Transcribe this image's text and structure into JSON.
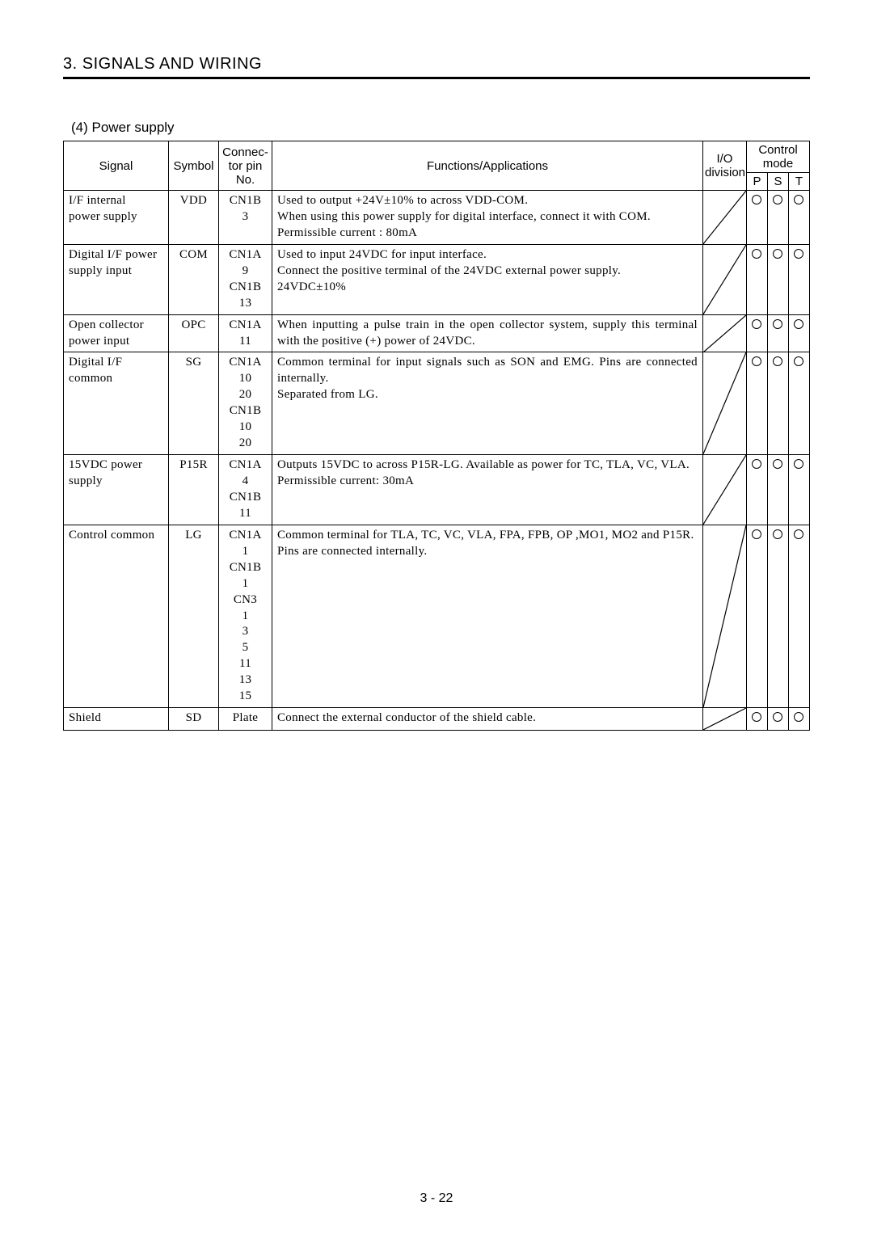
{
  "section_title": "3. SIGNALS AND WIRING",
  "sub_title": "(4) Power supply",
  "page_number": "3 -  22",
  "headers": {
    "signal": "Signal",
    "symbol": "Symbol",
    "connector": "Connec-\ntor pin\nNo.",
    "functions": "Functions/Applications",
    "io": "I/O\ndivision",
    "control_mode": "Control\nmode",
    "p": "P",
    "s": "S",
    "t": "T"
  },
  "rows": [
    {
      "signal": "I/F internal\npower supply",
      "symbol": "VDD",
      "conn": "CN1B\n3",
      "func": "Used to output +24V±10% to across VDD-COM.\nWhen using this power supply for digital interface, connect it with COM.\nPermissible current : 80mA",
      "p": true,
      "s": true,
      "t": true
    },
    {
      "signal": "Digital I/F power\nsupply input",
      "symbol": "COM",
      "conn": "CN1A\n9\nCN1B\n13",
      "func": "Used to input 24VDC for input interface.\nConnect the positive terminal of the 24VDC external power supply.\n24VDC±10%",
      "p": true,
      "s": true,
      "t": true
    },
    {
      "signal": "Open collector\npower input",
      "symbol": "OPC",
      "conn": "CN1A\n11",
      "func": "When inputting a pulse train in the open collector system, supply this terminal with the positive (+) power of 24VDC.",
      "p": true,
      "s": true,
      "t": true
    },
    {
      "signal": "Digital I/F\ncommon",
      "symbol": "SG",
      "conn": "CN1A\n10\n20\nCN1B\n10\n20",
      "func": "Common terminal for input signals such as SON and EMG. Pins are connected internally.\nSeparated from LG.",
      "p": true,
      "s": true,
      "t": true
    },
    {
      "signal": "15VDC power\nsupply",
      "symbol": "P15R",
      "conn": "CN1A\n4\nCN1B\n11",
      "func": "Outputs 15VDC to across P15R-LG. Available as power for TC, TLA, VC, VLA.\nPermissible current: 30mA",
      "p": true,
      "s": true,
      "t": true
    },
    {
      "signal": "Control common",
      "symbol": "LG",
      "conn": "CN1A\n1\nCN1B\n1\nCN3\n1\n3\n5\n11\n13\n15",
      "func": "Common terminal for TLA, TC, VC, VLA, FPA, FPB, OP ,MO1, MO2 and P15R.\nPins are connected internally.",
      "p": true,
      "s": true,
      "t": true
    },
    {
      "signal": "Shield",
      "symbol": "SD",
      "conn": "Plate",
      "func": "Connect the external conductor of the shield cable.",
      "p": true,
      "s": true,
      "t": true
    }
  ]
}
